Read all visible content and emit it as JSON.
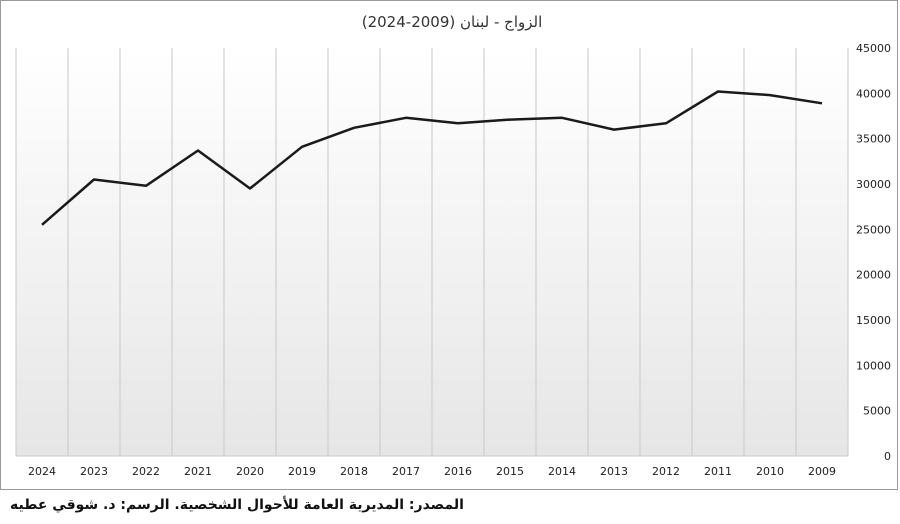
{
  "chart_data": {
    "type": "line",
    "title": "الزواج - لبنان (2009-2024)",
    "xlabel": "",
    "ylabel": "",
    "x_order": "reversed",
    "categories": [
      "2024",
      "2023",
      "2022",
      "2021",
      "2020",
      "2019",
      "2018",
      "2017",
      "2016",
      "2015",
      "2014",
      "2013",
      "2012",
      "2011",
      "2010",
      "2009"
    ],
    "series": [
      {
        "values": [
          25500,
          30500,
          29800,
          33700,
          29500,
          34100,
          36200,
          37300,
          36700,
          37100,
          37300,
          36000,
          36700,
          40200,
          39800,
          38900
        ]
      }
    ],
    "ylim": [
      0,
      45000
    ],
    "yticks": [
      "0",
      "5000",
      "10000",
      "15000",
      "20000",
      "25000",
      "30000",
      "35000",
      "40000",
      "45000"
    ],
    "y_axis_position": "right",
    "grid": "vertical",
    "legend": "none",
    "colors": {
      "line": "#1a1a1a",
      "grid": "#c8c8c8",
      "fill_top": "#ffffff",
      "fill_bottom": "#e6e6e6"
    }
  },
  "footer": {
    "source": "المصدر: المديرية العامة للأحوال الشخصية. الرسم: د. شوقي عطيه"
  }
}
